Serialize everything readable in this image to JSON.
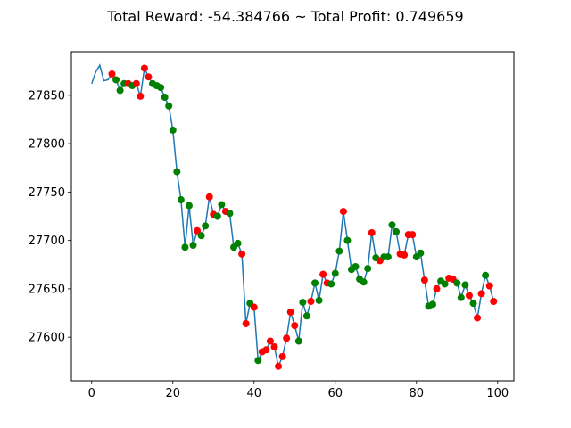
{
  "chart_data": {
    "type": "line",
    "title": "Total Reward: -54.384766 ~ Total Profit: 0.749659",
    "xlabel": "",
    "ylabel": "",
    "xlim": [
      -5,
      104
    ],
    "ylim": [
      27555,
      27895
    ],
    "x_ticks": [
      0,
      20,
      40,
      60,
      80,
      100
    ],
    "y_ticks": [
      27600,
      27650,
      27700,
      27750,
      27800,
      27850
    ],
    "grid": false,
    "legend": "none",
    "line_color": "#1f77b4",
    "long_color": "#008000",
    "short_color": "#ff0000",
    "series": [
      {
        "x": [
          0,
          1,
          2,
          3,
          4,
          5,
          6,
          7,
          8,
          9,
          10,
          11,
          12,
          13,
          14,
          15,
          16,
          17,
          18,
          19,
          20,
          21,
          22,
          23,
          24,
          25,
          26,
          27,
          28,
          29,
          30,
          31,
          32,
          33,
          34,
          35,
          36,
          37,
          38,
          39,
          40,
          41,
          42,
          43,
          44,
          45,
          46,
          47,
          48,
          49,
          50,
          51,
          52,
          53,
          54,
          55,
          56,
          57,
          58,
          59,
          60,
          61,
          62,
          63,
          64,
          65,
          66,
          67,
          68,
          69,
          70,
          71,
          72,
          73,
          74,
          75,
          76,
          77,
          78,
          79,
          80,
          81,
          82,
          83,
          84,
          85,
          86,
          87,
          88,
          89,
          90,
          91,
          92,
          93,
          94,
          95,
          96,
          97,
          98,
          99
        ],
        "y": [
          27862,
          27874,
          27881,
          27865,
          27866,
          27872,
          27866,
          27855,
          27862,
          27862,
          27860,
          27862,
          27849,
          27878,
          27869,
          27862,
          27860,
          27858,
          27848,
          27839,
          27814,
          27771,
          27742,
          27693,
          27736,
          27695,
          27710,
          27705,
          27715,
          27745,
          27727,
          27725,
          27737,
          27730,
          27728,
          27693,
          27697,
          27686,
          27614,
          27635,
          27631,
          27576,
          27585,
          27587,
          27596,
          27590,
          27570,
          27580,
          27599,
          27626,
          27612,
          27596,
          27636,
          27622,
          27637,
          27656,
          27638,
          27665,
          27656,
          27655,
          27666,
          27689,
          27730,
          27700,
          27670,
          27673,
          27660,
          27657,
          27671,
          27708,
          27682,
          27679,
          27683,
          27683,
          27716,
          27709,
          27686,
          27685,
          27706,
          27706,
          27683,
          27687,
          27659,
          27632,
          27634,
          27650,
          27658,
          27655,
          27661,
          27660,
          27656,
          27641,
          27654,
          27643,
          27635,
          27620,
          27645,
          27664,
          27653,
          27637
        ]
      }
    ],
    "positions": [
      null,
      null,
      null,
      null,
      null,
      "short",
      "long",
      "long",
      "long",
      "short",
      "long",
      "short",
      "short",
      "short",
      "short",
      "long",
      "long",
      "long",
      "long",
      "long",
      "long",
      "long",
      "long",
      "long",
      "long",
      "long",
      "short",
      "long",
      "long",
      "short",
      "short",
      "long",
      "long",
      "short",
      "long",
      "long",
      "long",
      "short",
      "short",
      "long",
      "short",
      "long",
      "short",
      "short",
      "short",
      "short",
      "short",
      "short",
      "short",
      "short",
      "short",
      "long",
      "long",
      "long",
      "short",
      "long",
      "long",
      "short",
      "short",
      "long",
      "long",
      "long",
      "short",
      "long",
      "long",
      "long",
      "long",
      "long",
      "long",
      "short",
      "long",
      "short",
      "long",
      "long",
      "long",
      "long",
      "short",
      "short",
      "short",
      "short",
      "long",
      "long",
      "short",
      "long",
      "long",
      "short",
      "long",
      "long",
      "short",
      "short",
      "long",
      "long",
      "long",
      "short",
      "long",
      "short",
      "short",
      "long",
      "short",
      "short"
    ]
  }
}
